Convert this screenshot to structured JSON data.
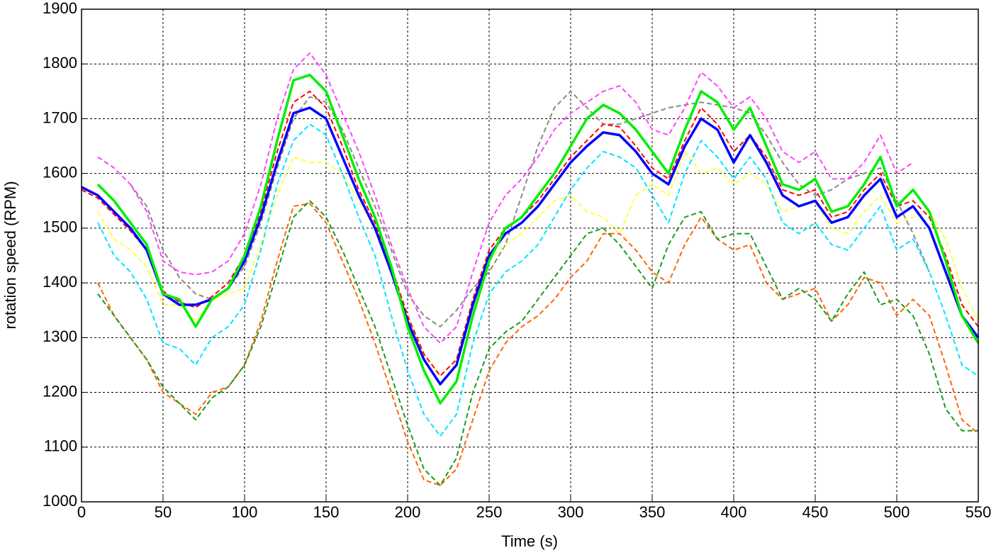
{
  "chart_data": {
    "type": "line",
    "xlabel": "Time (s)",
    "ylabel": "rotation speed (RPM)",
    "x": [
      0,
      10,
      20,
      30,
      40,
      50,
      60,
      70,
      80,
      90,
      100,
      110,
      120,
      130,
      140,
      150,
      160,
      170,
      180,
      190,
      200,
      210,
      220,
      230,
      240,
      250,
      260,
      270,
      280,
      290,
      300,
      310,
      320,
      330,
      340,
      350,
      360,
      370,
      380,
      390,
      400,
      410,
      420,
      430,
      440,
      450,
      460,
      470,
      480,
      490,
      500,
      510,
      520,
      530,
      540,
      550
    ],
    "xlim": [
      0,
      550
    ],
    "xticks": [
      0,
      50,
      100,
      150,
      200,
      250,
      300,
      350,
      400,
      450,
      500,
      550
    ],
    "ylim": [
      1000,
      1900
    ],
    "yticks": [
      1000,
      1100,
      1200,
      1300,
      1400,
      1500,
      1600,
      1700,
      1800,
      1900
    ],
    "grid": true,
    "series": [
      {
        "color": "#888888",
        "dash": true,
        "values": [
          null,
          null,
          null,
          1580,
          1540,
          1460,
          1410,
          1380,
          1370,
          1390,
          1430,
          1510,
          1610,
          1700,
          1740,
          1730,
          1680,
          1610,
          1540,
          1460,
          1380,
          1340,
          1320,
          1350,
          1390,
          1420,
          1470,
          1560,
          1650,
          1720,
          1750,
          1720,
          1690,
          1690,
          1700,
          1710,
          1720,
          1725,
          1730,
          1725,
          1720,
          1710,
          1670,
          1620,
          1580,
          1560,
          1570,
          1590,
          1600,
          1610,
          1550,
          1490,
          1420,
          null,
          null,
          null
        ]
      },
      {
        "color": "#ff44ff",
        "dash": true,
        "values": [
          null,
          1630,
          1610,
          1580,
          1530,
          1440,
          1420,
          1415,
          1420,
          1440,
          1490,
          1580,
          1700,
          1790,
          1820,
          1780,
          1710,
          1640,
          1560,
          1470,
          1390,
          1320,
          1290,
          1320,
          1420,
          1510,
          1560,
          1590,
          1630,
          1680,
          1710,
          1730,
          1750,
          1760,
          1730,
          1680,
          1670,
          1720,
          1785,
          1760,
          1720,
          1740,
          1700,
          1640,
          1620,
          1640,
          1590,
          1590,
          1620,
          1670,
          1600,
          1620,
          null,
          null,
          null,
          null
        ]
      },
      {
        "color": "#ffff44",
        "dash": true,
        "values": [
          null,
          1530,
          1480,
          1460,
          1430,
          1360,
          1360,
          1330,
          1370,
          1380,
          1390,
          1470,
          1560,
          1630,
          1620,
          1620,
          1600,
          1550,
          1500,
          1420,
          1340,
          1270,
          1230,
          1260,
          1350,
          1440,
          1470,
          1490,
          1520,
          1550,
          1560,
          1530,
          1520,
          1490,
          1560,
          1580,
          1560,
          1640,
          1600,
          1610,
          1580,
          1600,
          1580,
          1530,
          1540,
          1550,
          1500,
          1490,
          1530,
          1560,
          1510,
          1520,
          1530,
          1480,
          1390,
          1330
        ]
      },
      {
        "color": "#00e5ff",
        "dash": true,
        "values": [
          null,
          1510,
          1450,
          1420,
          1370,
          1290,
          1280,
          1250,
          1300,
          1320,
          1360,
          1460,
          1580,
          1660,
          1690,
          1670,
          1600,
          1520,
          1450,
          1340,
          1240,
          1160,
          1120,
          1160,
          1290,
          1380,
          1420,
          1440,
          1470,
          1520,
          1570,
          1610,
          1640,
          1630,
          1610,
          1560,
          1510,
          1600,
          1660,
          1630,
          1590,
          1630,
          1590,
          1510,
          1490,
          1510,
          1470,
          1460,
          1500,
          1540,
          1460,
          1480,
          1420,
          1340,
          1250,
          1230
        ]
      },
      {
        "color": "#ff6600",
        "dash": true,
        "values": [
          null,
          1400,
          1340,
          1300,
          1260,
          1200,
          1180,
          1160,
          1200,
          1210,
          1250,
          1330,
          1440,
          1540,
          1545,
          1510,
          1440,
          1370,
          1290,
          1200,
          1110,
          1040,
          1030,
          1060,
          1150,
          1240,
          1290,
          1320,
          1340,
          1370,
          1410,
          1440,
          1490,
          1490,
          1460,
          1420,
          1400,
          1470,
          1520,
          1480,
          1460,
          1470,
          1400,
          1370,
          1380,
          1390,
          1330,
          1360,
          1410,
          1400,
          1340,
          1370,
          1340,
          1250,
          1150,
          1125
        ]
      },
      {
        "color": "#1a9a1a",
        "dash": true,
        "values": [
          null,
          1380,
          1340,
          1300,
          1260,
          1210,
          1180,
          1150,
          1190,
          1210,
          1250,
          1320,
          1420,
          1520,
          1550,
          1520,
          1460,
          1390,
          1320,
          1230,
          1140,
          1060,
          1030,
          1080,
          1200,
          1280,
          1310,
          1330,
          1370,
          1410,
          1450,
          1490,
          1500,
          1470,
          1430,
          1390,
          1470,
          1520,
          1530,
          1480,
          1490,
          1490,
          1430,
          1370,
          1390,
          1370,
          1330,
          1380,
          1420,
          1360,
          1370,
          1340,
          1270,
          1170,
          1130,
          1130
        ]
      },
      {
        "color": "#ff0000",
        "dash": true,
        "values": [
          1570,
          1555,
          1525,
          1495,
          1460,
          1385,
          1365,
          1355,
          1375,
          1400,
          1450,
          1530,
          1640,
          1730,
          1750,
          1720,
          1650,
          1570,
          1510,
          1430,
          1340,
          1270,
          1230,
          1260,
          1370,
          1460,
          1500,
          1520,
          1550,
          1590,
          1630,
          1660,
          1690,
          1685,
          1650,
          1610,
          1590,
          1660,
          1720,
          1690,
          1640,
          1670,
          1630,
          1570,
          1560,
          1570,
          1520,
          1530,
          1570,
          1600,
          1540,
          1550,
          1520,
          1450,
          1360,
          1320
        ]
      },
      {
        "color": "#0000ff",
        "dash": false,
        "values": [
          1575,
          1560,
          1530,
          1500,
          1460,
          1380,
          1360,
          1360,
          1370,
          1390,
          1440,
          1520,
          1620,
          1710,
          1720,
          1700,
          1630,
          1560,
          1500,
          1420,
          1330,
          1260,
          1215,
          1250,
          1360,
          1450,
          1490,
          1510,
          1540,
          1580,
          1620,
          1650,
          1675,
          1670,
          1640,
          1600,
          1580,
          1650,
          1700,
          1680,
          1620,
          1670,
          1620,
          1560,
          1540,
          1550,
          1510,
          1520,
          1560,
          1590,
          1520,
          1540,
          1500,
          1420,
          1340,
          1300
        ]
      },
      {
        "color": "#00ee00",
        "dash": false,
        "values": [
          null,
          1580,
          1550,
          1510,
          1470,
          1380,
          1370,
          1320,
          1370,
          1390,
          1450,
          1540,
          1660,
          1770,
          1780,
          1750,
          1670,
          1590,
          1520,
          1430,
          1320,
          1240,
          1180,
          1220,
          1340,
          1440,
          1500,
          1520,
          1560,
          1600,
          1650,
          1700,
          1725,
          1710,
          1680,
          1640,
          1600,
          1680,
          1750,
          1730,
          1680,
          1720,
          1650,
          1580,
          1570,
          1590,
          1530,
          1540,
          1580,
          1630,
          1540,
          1570,
          1530,
          1440,
          1340,
          1290
        ]
      }
    ]
  }
}
